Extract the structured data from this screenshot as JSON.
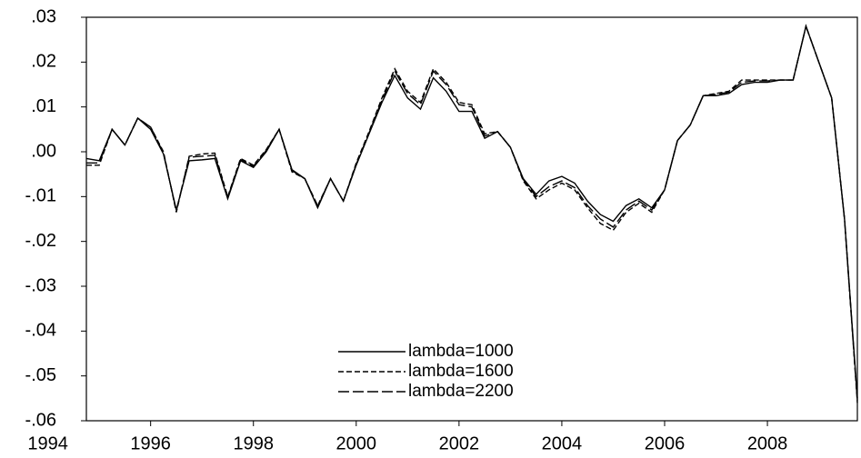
{
  "chart_data": {
    "type": "line",
    "x": [
      1994.75,
      1995,
      1995.25,
      1995.5,
      1995.75,
      1996,
      1996.25,
      1996.5,
      1996.75,
      1997,
      1997.25,
      1997.5,
      1997.75,
      1998,
      1998.25,
      1998.5,
      1998.75,
      1999,
      1999.25,
      1999.5,
      1999.75,
      2000,
      2000.25,
      2000.5,
      2000.75,
      2001,
      2001.25,
      2001.5,
      2001.75,
      2002,
      2002.25,
      2002.5,
      2002.75,
      2003,
      2003.25,
      2003.5,
      2003.75,
      2004,
      2004.25,
      2004.5,
      2004.75,
      2005,
      2005.25,
      2005.5,
      2005.75,
      2006,
      2006.25,
      2006.5,
      2006.75,
      2007,
      2007.25,
      2007.5,
      2007.75,
      2008,
      2008.25,
      2008.5,
      2008.75,
      2009,
      2009.25,
      2009.5,
      2009.75
    ],
    "series": [
      {
        "name": "lambda=1000",
        "color": "#000000",
        "dash": "solid",
        "values": [
          -0.0015,
          -0.002,
          0.005,
          0.0015,
          0.0075,
          0.005,
          -0.0005,
          -0.013,
          -0.002,
          -0.0018,
          -0.0015,
          -0.0105,
          -0.002,
          -0.0035,
          0,
          0.005,
          -0.004,
          -0.006,
          -0.0125,
          -0.006,
          -0.011,
          -0.003,
          0.004,
          0.011,
          0.017,
          0.012,
          0.0095,
          0.0165,
          0.0135,
          0.009,
          0.009,
          0.003,
          0.0045,
          0.001,
          -0.006,
          -0.0095,
          -0.0065,
          -0.0055,
          -0.007,
          -0.011,
          -0.014,
          -0.0155,
          -0.012,
          -0.0105,
          -0.0125,
          -0.0085,
          0.0025,
          0.006,
          0.0125,
          0.0125,
          0.013,
          0.015,
          0.0155,
          0.0155,
          0.016,
          0.016,
          0.028,
          0.02,
          0.012,
          -0.015,
          -0.055
        ]
      },
      {
        "name": "lambda=1600",
        "color": "#000000",
        "dash": "short",
        "values": [
          -0.003,
          -0.003,
          0.005,
          0.0015,
          0.0075,
          0.0055,
          0,
          -0.0135,
          -0.001,
          -0.0005,
          -0.0003,
          -0.01,
          -0.0015,
          -0.003,
          0.0005,
          0.005,
          -0.0045,
          -0.006,
          -0.012,
          -0.006,
          -0.011,
          -0.0025,
          0.0045,
          0.012,
          0.0185,
          0.0135,
          0.011,
          0.0185,
          0.0155,
          0.011,
          0.0105,
          0.004,
          0.0045,
          0.001,
          -0.0065,
          -0.0105,
          -0.0085,
          -0.007,
          -0.0085,
          -0.0125,
          -0.016,
          -0.0175,
          -0.0135,
          -0.0115,
          -0.0135,
          -0.0085,
          0.0025,
          0.006,
          0.0125,
          0.013,
          0.0135,
          0.016,
          0.016,
          0.016,
          0.016,
          0.016,
          0.028,
          0.02,
          0.012,
          -0.015,
          -0.056
        ]
      },
      {
        "name": "lambda=2200",
        "color": "#000000",
        "dash": "long",
        "values": [
          -0.0025,
          -0.0025,
          0.005,
          0.0015,
          0.0075,
          0.0055,
          -0.0003,
          -0.0132,
          -0.0012,
          -0.001,
          -0.0008,
          -0.0102,
          -0.0018,
          -0.0032,
          0.0003,
          0.005,
          -0.0042,
          -0.006,
          -0.0122,
          -0.006,
          -0.011,
          -0.0028,
          0.0042,
          0.0115,
          0.018,
          0.013,
          0.0105,
          0.018,
          0.015,
          0.0105,
          0.01,
          0.0035,
          0.0045,
          0.001,
          -0.0062,
          -0.01,
          -0.0078,
          -0.0065,
          -0.008,
          -0.012,
          -0.015,
          -0.0168,
          -0.013,
          -0.011,
          -0.013,
          -0.0085,
          0.0025,
          0.006,
          0.0125,
          0.0128,
          0.0133,
          0.0155,
          0.0158,
          0.0158,
          0.016,
          0.016,
          0.028,
          0.02,
          0.012,
          -0.015,
          -0.0555
        ]
      }
    ],
    "xlim": [
      1994.75,
      2009.75
    ],
    "xticks": [
      1994,
      1996,
      1998,
      2000,
      2002,
      2004,
      2006,
      2008
    ],
    "ylim": [
      -0.06,
      0.03
    ],
    "yticks": [
      {
        "value": -0.06,
        "label": "-.06"
      },
      {
        "value": -0.05,
        "label": "-.05"
      },
      {
        "value": -0.04,
        "label": "-.04"
      },
      {
        "value": -0.03,
        "label": "-.03"
      },
      {
        "value": -0.02,
        "label": "-.02"
      },
      {
        "value": -0.01,
        "label": "-.01"
      },
      {
        "value": 0,
        "label": ".00"
      },
      {
        "value": 0.01,
        "label": ".01"
      },
      {
        "value": 0.02,
        "label": ".02"
      },
      {
        "value": 0.03,
        "label": ".03"
      }
    ],
    "grid": false,
    "legend": "bottom-center"
  }
}
